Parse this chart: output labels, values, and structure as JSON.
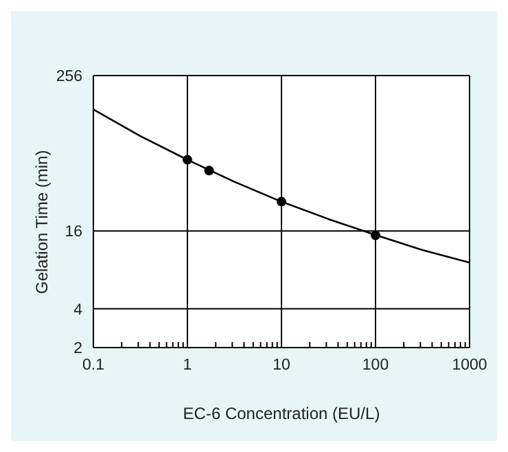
{
  "chart_data": {
    "type": "scatter",
    "xlabel": "EC-6 Concentration (EU/L)",
    "ylabel": "Gelation Time (min)",
    "log": "xy",
    "grid": true,
    "xlim": [
      0.1,
      1000
    ],
    "xticks": [
      0.1,
      {
        "value": 0.2,
        "label": null
      },
      {
        "value": 0.3,
        "label": null
      },
      {
        "value": 0.4,
        "label": null
      },
      {
        "value": 0.5,
        "label": null
      },
      {
        "value": 0.6,
        "label": null
      },
      {
        "value": 0.7,
        "label": null
      },
      {
        "value": 0.8,
        "label": null
      },
      {
        "value": 0.9,
        "label": null
      },
      1,
      {
        "value": 2,
        "label": null
      },
      {
        "value": 3,
        "label": null
      },
      {
        "value": 4,
        "label": null
      },
      {
        "value": 5,
        "label": null
      },
      {
        "value": 6,
        "label": null
      },
      {
        "value": 7,
        "label": null
      },
      {
        "value": 8,
        "label": null
      },
      {
        "value": 9,
        "label": null
      },
      10,
      {
        "value": 20,
        "label": null
      },
      {
        "value": 30,
        "label": null
      },
      {
        "value": 40,
        "label": null
      },
      {
        "value": 50,
        "label": null
      },
      {
        "value": 60,
        "label": null
      },
      {
        "value": 70,
        "label": null
      },
      {
        "value": 80,
        "label": null
      },
      {
        "value": 90,
        "label": null
      },
      100,
      {
        "value": 200,
        "label": null
      },
      {
        "value": 300,
        "label": null
      },
      {
        "value": 400,
        "label": null
      },
      {
        "value": 500,
        "label": null
      },
      {
        "value": 600,
        "label": null
      },
      {
        "value": 700,
        "label": null
      },
      {
        "value": 800,
        "label": null
      },
      {
        "value": 900,
        "label": null
      },
      1000
    ],
    "ylim": [
      2,
      256
    ],
    "yticks": [
      2,
      4,
      16,
      256
    ],
    "series": [
      {
        "type": "scatter",
        "color": "#000000",
        "marker": "circle",
        "x": [
          1,
          1.7,
          10,
          100
        ],
        "values": [
          57,
          47,
          27,
          14.8
        ]
      },
      {
        "type": "line",
        "color": "#000000",
        "marker": "none",
        "x": [
          0.1,
          0.316,
          1,
          3.16,
          10,
          31.6,
          100,
          316,
          1000
        ],
        "values": [
          140,
          87,
          57,
          38.5,
          27,
          19.8,
          14.9,
          11.4,
          9.1
        ]
      }
    ]
  }
}
